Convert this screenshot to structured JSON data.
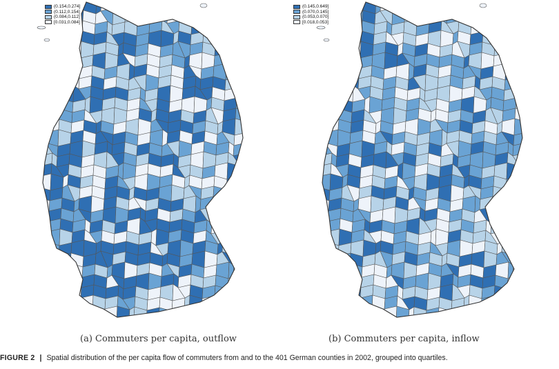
{
  "panel_a": {
    "subcaption": "(a) Commuters per capita, outflow",
    "legend": [
      {
        "label": "(0.154,0.274]",
        "color": "#2f6fb3"
      },
      {
        "label": "(0.112,0.154]",
        "color": "#6aa3d4"
      },
      {
        "label": "(0.084,0.112]",
        "color": "#b7d3e8"
      },
      {
        "label": "[0.031,0.084]",
        "color": "#eef3fa"
      }
    ]
  },
  "panel_b": {
    "subcaption": "(b) Commuters per capita, inflow",
    "legend": [
      {
        "label": "(0.145,0.649]",
        "color": "#2f6fb3"
      },
      {
        "label": "(0.070,0.145]",
        "color": "#6aa3d4"
      },
      {
        "label": "(0.053,0.070]",
        "color": "#b7d3e8"
      },
      {
        "label": "[0.018,0.053]",
        "color": "#eef3fa"
      }
    ]
  },
  "figure_caption": {
    "label": "FIGURE 2",
    "separator": "|",
    "text": "Spatial distribution of the per capita flow of commuters from and to the 401 German counties in 2002, grouped into quartiles."
  }
}
